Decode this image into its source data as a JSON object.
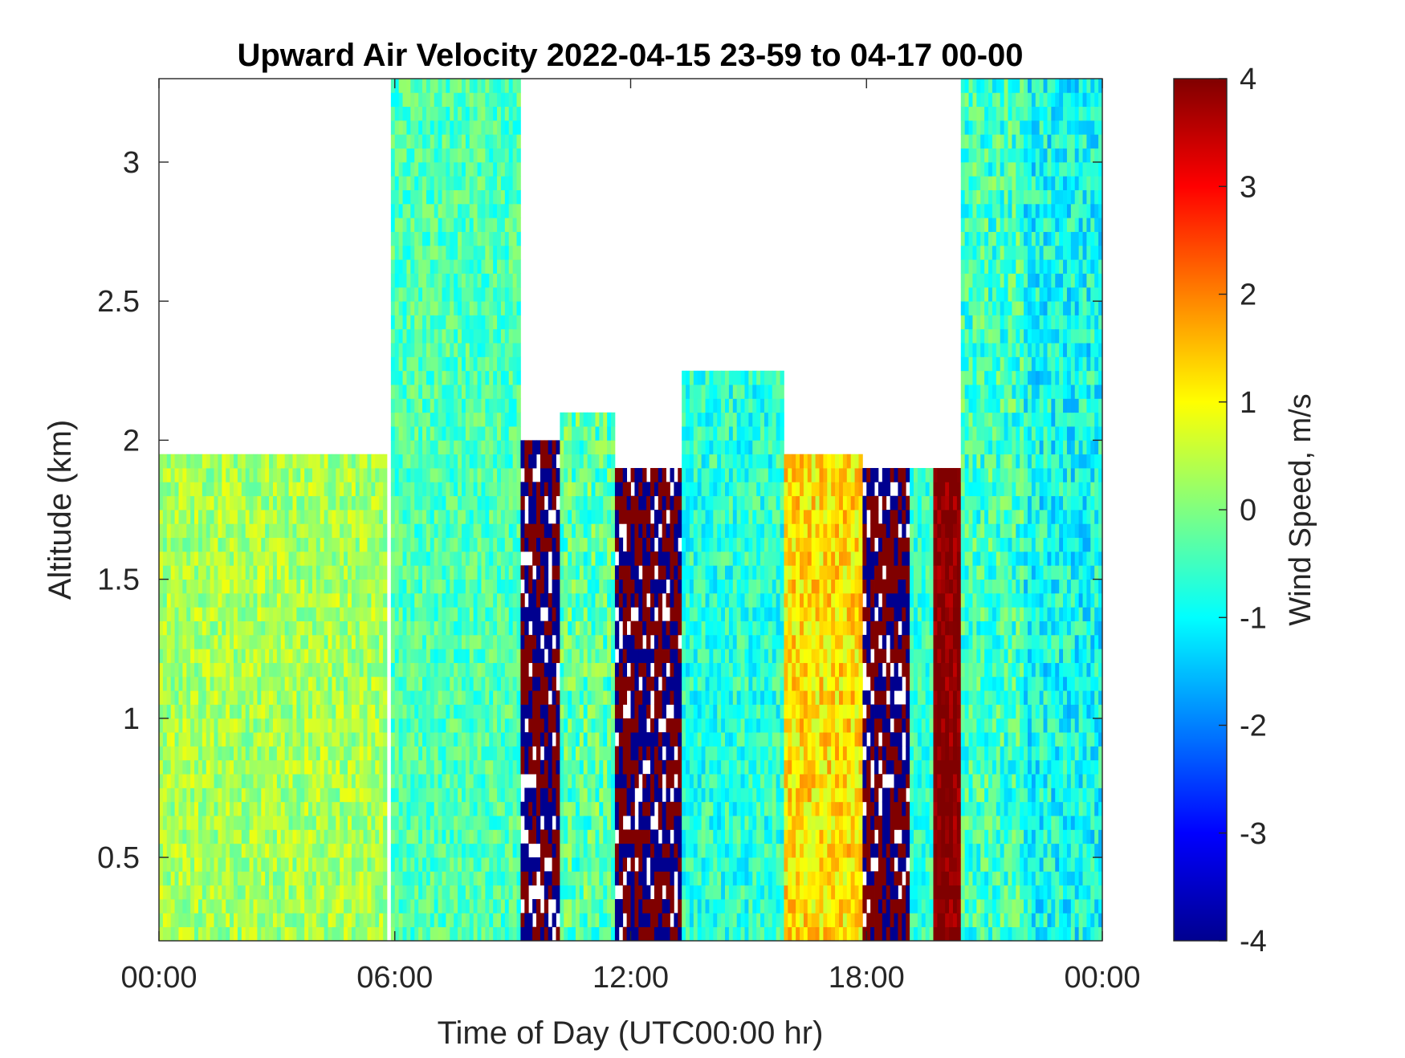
{
  "chart_data": {
    "type": "heatmap",
    "title": "Upward Air Velocity 2022-04-15 23-59 to 04-17 00-00",
    "xlabel": "Time of Day (UTC00:00 hr)",
    "ylabel": "Altitude (km)",
    "colorbar_label": "Wind Speed, m/s",
    "colormap": "jet",
    "colormap_stops": [
      "#00008f",
      "#0000ff",
      "#0080ff",
      "#00ffff",
      "#80ff80",
      "#ffff00",
      "#ff8000",
      "#ff0000",
      "#800000"
    ],
    "grid": false,
    "x_range_hours": [
      0,
      24
    ],
    "y_range_km": [
      0.2,
      3.3
    ],
    "c_range": [
      -4,
      4
    ],
    "x_ticks": [
      {
        "value": 0,
        "label": "00:00"
      },
      {
        "value": 6,
        "label": "06:00"
      },
      {
        "value": 12,
        "label": "12:00"
      },
      {
        "value": 18,
        "label": "18:00"
      },
      {
        "value": 24,
        "label": "00:00"
      }
    ],
    "y_ticks": [
      {
        "value": 0.5,
        "label": "0.5"
      },
      {
        "value": 1,
        "label": "1"
      },
      {
        "value": 1.5,
        "label": "1.5"
      },
      {
        "value": 2,
        "label": "2"
      },
      {
        "value": 2.5,
        "label": "2.5"
      },
      {
        "value": 3,
        "label": "3"
      }
    ],
    "c_ticks": [
      {
        "value": 4,
        "label": "4"
      },
      {
        "value": 3,
        "label": "3"
      },
      {
        "value": 2,
        "label": "2"
      },
      {
        "value": 1,
        "label": "1"
      },
      {
        "value": 0,
        "label": "0"
      },
      {
        "value": -1,
        "label": "-1"
      },
      {
        "value": -2,
        "label": "-2"
      },
      {
        "value": -3,
        "label": "-3"
      },
      {
        "value": -4,
        "label": "-4"
      }
    ],
    "time_segments": [
      {
        "start": 0.0,
        "end": 5.8,
        "top_km": 1.95,
        "mean_velocity": 0.3,
        "spread": 0.6
      },
      {
        "start": 5.8,
        "end": 5.95,
        "top_km": 0.2,
        "mean_velocity": null,
        "spread": 0
      },
      {
        "start": 5.95,
        "end": 9.2,
        "top_km": 3.3,
        "mean_velocity": -0.4,
        "spread": 0.6
      },
      {
        "start": 9.2,
        "end": 10.2,
        "top_km": 2.0,
        "mean_velocity": 4.0,
        "spread": 4.0
      },
      {
        "start": 10.2,
        "end": 11.6,
        "top_km": 2.1,
        "mean_velocity": -0.3,
        "spread": 0.8
      },
      {
        "start": 11.6,
        "end": 13.3,
        "top_km": 1.9,
        "mean_velocity": 4.0,
        "spread": 4.0
      },
      {
        "start": 13.3,
        "end": 15.9,
        "top_km": 2.25,
        "mean_velocity": -0.7,
        "spread": 0.7
      },
      {
        "start": 15.9,
        "end": 17.9,
        "top_km": 1.95,
        "mean_velocity": 1.2,
        "spread": 0.7
      },
      {
        "start": 17.9,
        "end": 19.1,
        "top_km": 1.9,
        "mean_velocity": 4.0,
        "spread": 4.0
      },
      {
        "start": 19.1,
        "end": 19.7,
        "top_km": 1.9,
        "mean_velocity": -0.6,
        "spread": 0.6
      },
      {
        "start": 19.7,
        "end": 20.4,
        "top_km": 1.9,
        "mean_velocity": 4.0,
        "spread": 0.5
      },
      {
        "start": 20.4,
        "end": 22.0,
        "top_km": 3.3,
        "mean_velocity": -0.5,
        "spread": 0.8
      },
      {
        "start": 22.0,
        "end": 24.0,
        "top_km": 3.3,
        "mean_velocity": -0.9,
        "spread": 0.8
      }
    ]
  }
}
